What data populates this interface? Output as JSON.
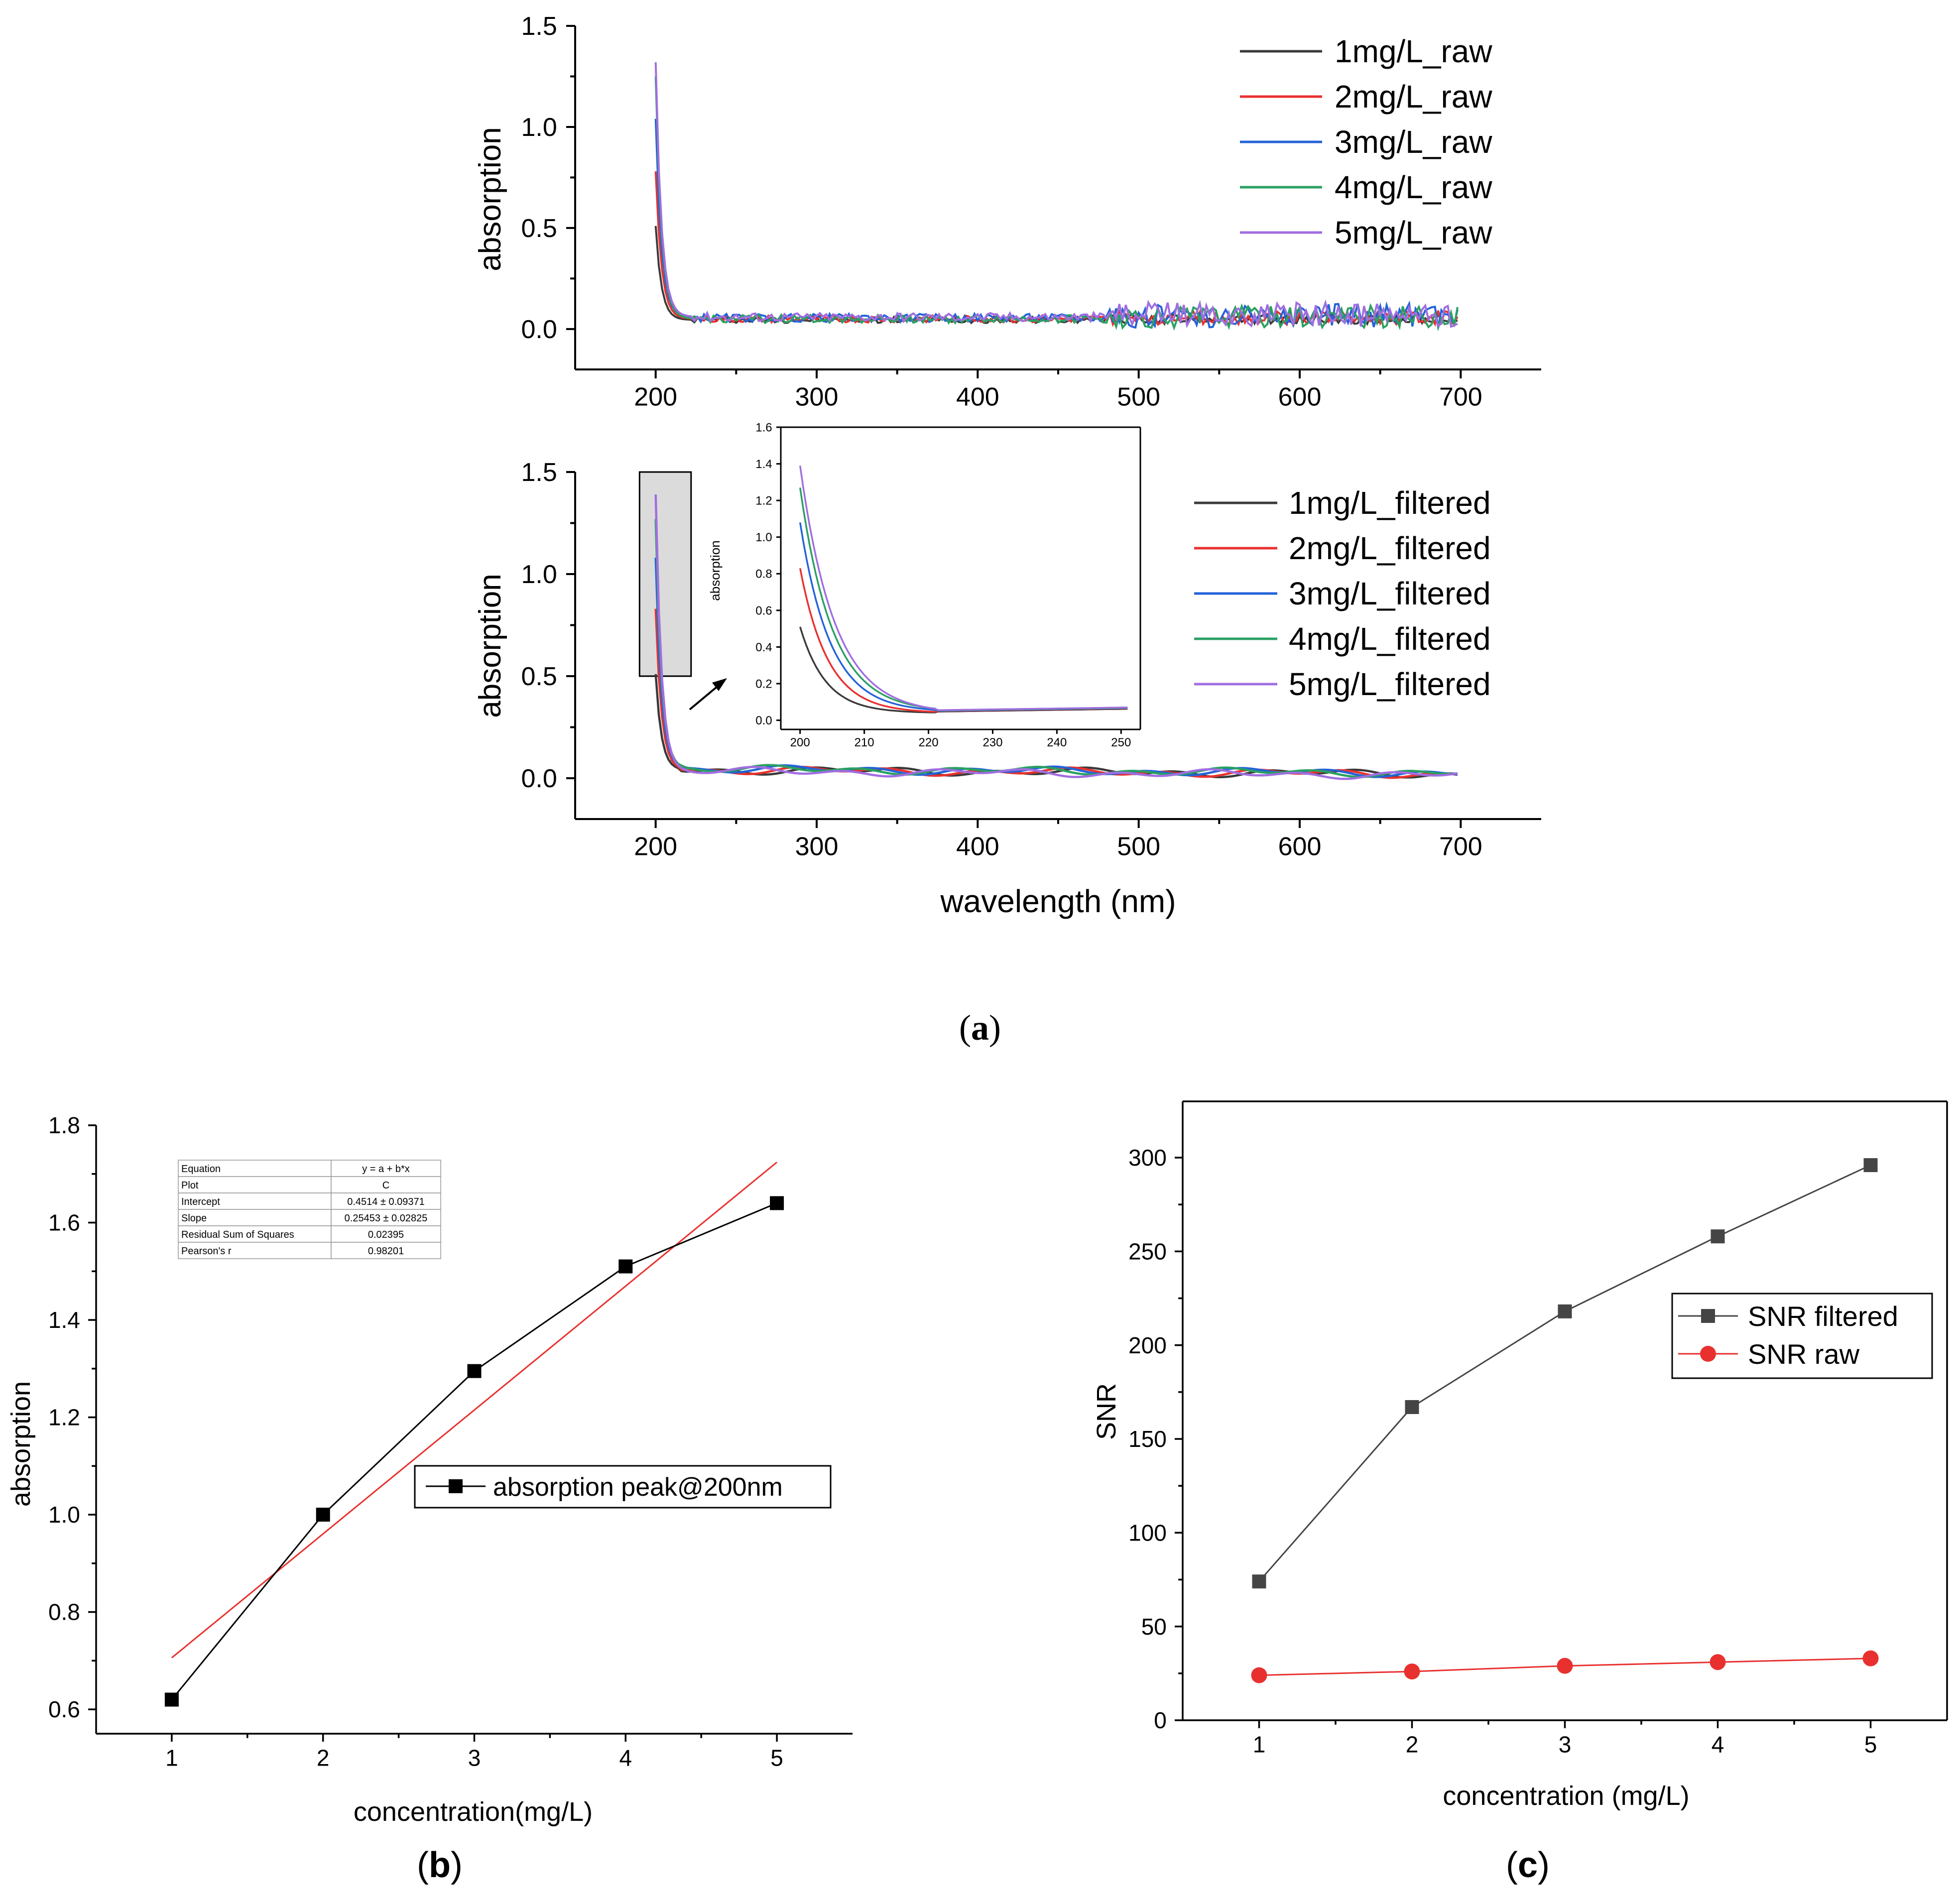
{
  "colors": {
    "c1": "#3a3a3a",
    "c2": "#e8312f",
    "c3": "#2463d8",
    "c4": "#2aa062",
    "c5": "#a06ee0",
    "fit": "#e8312f",
    "snr_filtered": "#454545",
    "snr_raw": "#e8312f",
    "zoom_box": "#bdbdbd"
  },
  "chart_data": [
    {
      "id": "a_raw",
      "type": "line",
      "xlabel": "",
      "ylabel": "absorption",
      "xlim": [
        150,
        750
      ],
      "ylim": [
        -0.2,
        1.5
      ],
      "xticks": [
        200,
        300,
        400,
        500,
        600,
        700
      ],
      "yticks": [
        0.0,
        0.5,
        1.0,
        1.5
      ],
      "xtick_labels": [
        "200",
        "300",
        "400",
        "500",
        "600",
        "700"
      ],
      "ytick_labels": [
        "0.0",
        "0.5",
        "1.0",
        "1.5"
      ],
      "legend_position": "top-right",
      "series": [
        {
          "name": "1mg/L_raw",
          "peak": 0.51,
          "base": 0.045,
          "noise": 0.015,
          "extra_noise": 0.025
        },
        {
          "name": "2mg/L_raw",
          "peak": 0.78,
          "base": 0.05,
          "noise": 0.018,
          "extra_noise": 0.035
        },
        {
          "name": "3mg/L_raw",
          "peak": 1.04,
          "base": 0.055,
          "noise": 0.02,
          "extra_noise": 0.06
        },
        {
          "name": "4mg/L_raw",
          "peak": 1.25,
          "base": 0.05,
          "noise": 0.02,
          "extra_noise": 0.055
        },
        {
          "name": "5mg/L_raw",
          "peak": 1.32,
          "base": 0.06,
          "noise": 0.022,
          "extra_noise": 0.06
        }
      ]
    },
    {
      "id": "a_filtered",
      "type": "line",
      "xlabel": "wavelength (nm)",
      "ylabel": "absorption",
      "xlim": [
        150,
        750
      ],
      "ylim": [
        -0.2,
        1.5
      ],
      "xticks": [
        200,
        300,
        400,
        500,
        600,
        700
      ],
      "yticks": [
        0.0,
        0.5,
        1.0,
        1.5
      ],
      "xtick_labels": [
        "200",
        "300",
        "400",
        "500",
        "600",
        "700"
      ],
      "ytick_labels": [
        "0.0",
        "0.5",
        "1.0",
        "1.5"
      ],
      "legend_position": "top-right",
      "zoom_region": {
        "x": [
          190,
          222
        ],
        "y": [
          0.5,
          1.5
        ]
      },
      "series": [
        {
          "name": "1mg/L_filtered",
          "peak": 0.51,
          "base": 0.04
        },
        {
          "name": "2mg/L_filtered",
          "peak": 0.83,
          "base": 0.04
        },
        {
          "name": "3mg/L_filtered",
          "peak": 1.08,
          "base": 0.045
        },
        {
          "name": "4mg/L_filtered",
          "peak": 1.27,
          "base": 0.045
        },
        {
          "name": "5mg/L_filtered",
          "peak": 1.39,
          "base": 0.035
        }
      ],
      "inset": {
        "xlabel": "",
        "ylabel": "absorption",
        "xlim": [
          197,
          253
        ],
        "ylim": [
          -0.05,
          1.6
        ],
        "xticks": [
          200,
          210,
          220,
          230,
          240,
          250
        ],
        "yticks": [
          0.0,
          0.2,
          0.4,
          0.6,
          0.8,
          1.0,
          1.2,
          1.4,
          1.6
        ],
        "xtick_labels": [
          "200",
          "210",
          "220",
          "230",
          "240",
          "250"
        ],
        "ytick_labels": [
          "0.0",
          "0.2",
          "0.4",
          "0.6",
          "0.8",
          "1.0",
          "1.2",
          "1.4",
          "1.6"
        ]
      }
    },
    {
      "id": "b",
      "type": "line",
      "xlabel": "concentration(mg/L)",
      "ylabel": "absorption",
      "xlim": [
        0.5,
        5.5
      ],
      "ylim": [
        0.55,
        1.8
      ],
      "xticks": [
        1,
        2,
        3,
        4,
        5
      ],
      "yticks": [
        0.6,
        0.8,
        1.0,
        1.2,
        1.4,
        1.6,
        1.8
      ],
      "xtick_labels": [
        "1",
        "2",
        "3",
        "4",
        "5"
      ],
      "ytick_labels": [
        "0.6",
        "0.8",
        "1.0",
        "1.2",
        "1.4",
        "1.6",
        "1.8"
      ],
      "series": [
        {
          "name": "absorption peak@200nm",
          "x": [
            1,
            2,
            3,
            4,
            5
          ],
          "y": [
            0.62,
            1.0,
            1.295,
            1.51,
            1.64
          ]
        }
      ],
      "fit": {
        "intercept": 0.4514,
        "slope": 0.25453
      },
      "fit_table": [
        [
          "Equation",
          "y = a + b*x"
        ],
        [
          "Plot",
          "C"
        ],
        [
          "Intercept",
          "0.4514 ± 0.09371"
        ],
        [
          "Slope",
          "0.25453 ± 0.02825"
        ],
        [
          "Residual Sum of Squares",
          "0.02395"
        ],
        [
          "Pearson's r",
          "0.98201"
        ]
      ],
      "legend_position": "center-right"
    },
    {
      "id": "c",
      "type": "line",
      "xlabel": "concentration (mg/L)",
      "ylabel": "SNR",
      "xlim": [
        0.5,
        5.5
      ],
      "ylim": [
        0,
        330
      ],
      "xticks": [
        1,
        2,
        3,
        4,
        5
      ],
      "yticks": [
        0,
        50,
        100,
        150,
        200,
        250,
        300
      ],
      "xtick_labels": [
        "1",
        "2",
        "3",
        "4",
        "5"
      ],
      "ytick_labels": [
        "0",
        "50",
        "100",
        "150",
        "200",
        "250",
        "300"
      ],
      "series": [
        {
          "name": "SNR filtered",
          "x": [
            1,
            2,
            3,
            4,
            5
          ],
          "y": [
            74,
            167,
            218,
            258,
            296
          ]
        },
        {
          "name": "SNR raw",
          "x": [
            1,
            2,
            3,
            4,
            5
          ],
          "y": [
            24,
            26,
            29,
            31,
            33
          ]
        }
      ],
      "legend_position": "center-right"
    }
  ],
  "captions": {
    "a": "a",
    "b": "b",
    "c": "c"
  }
}
